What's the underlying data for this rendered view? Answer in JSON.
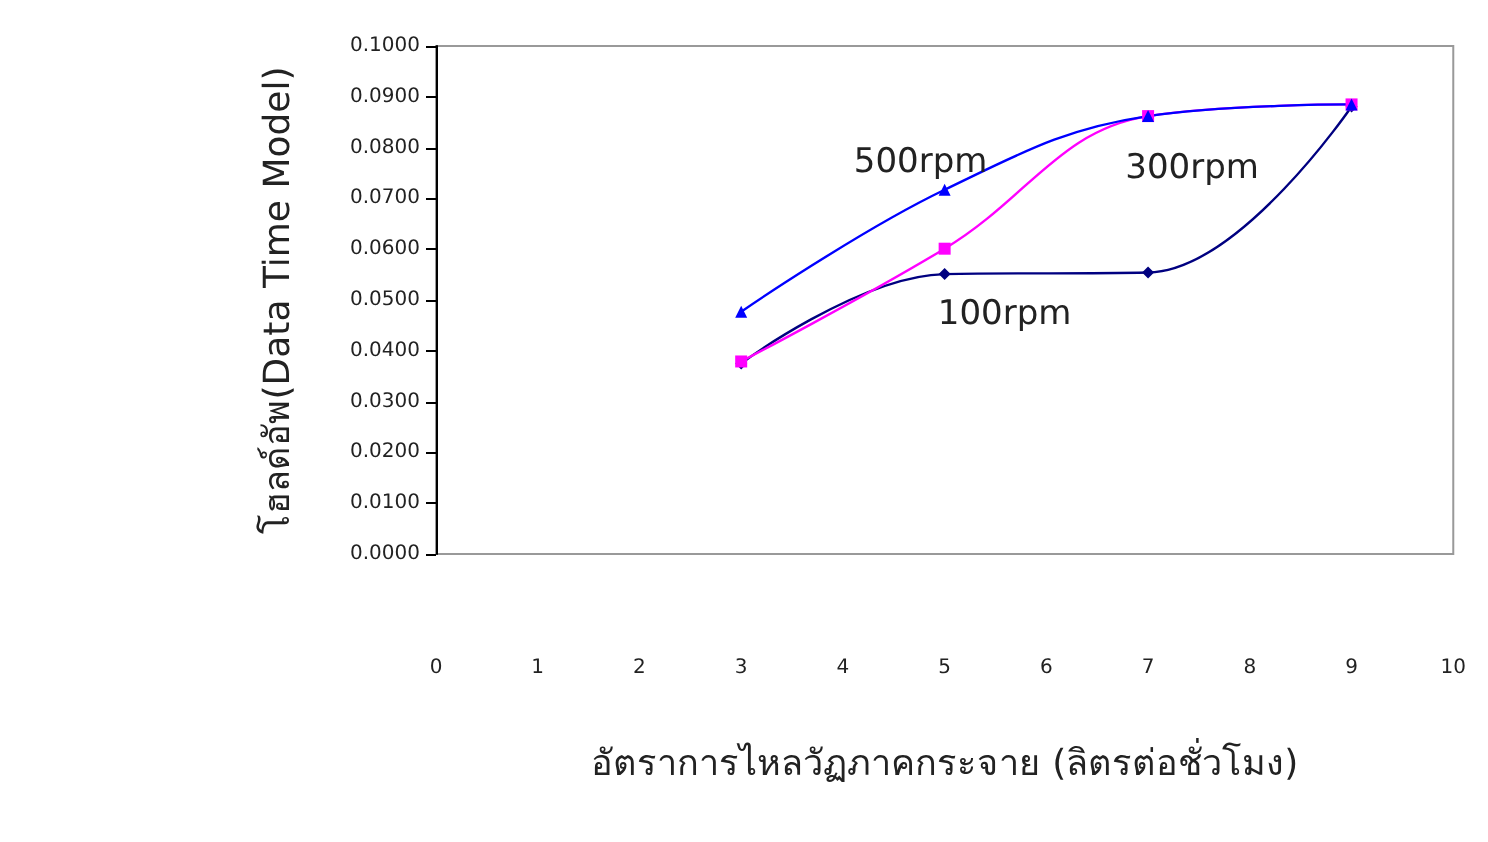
{
  "chart_data": {
    "type": "line",
    "xlabel": "อัตราการไหลวัฏภาคกระจาย (ลิตรต่อชั่วโมง)",
    "ylabel": "โฮลด์อัพ(Data Time Model)",
    "x": [
      3,
      5,
      7,
      9
    ],
    "series": [
      {
        "name": "100rpm",
        "color": "#000080",
        "marker": "diamond",
        "values": [
          0.0375,
          0.0551,
          0.0554,
          0.0881
        ]
      },
      {
        "name": "300rpm",
        "color": "#ff00ff",
        "marker": "square",
        "values": [
          0.0379,
          0.0601,
          0.0862,
          0.0885
        ]
      },
      {
        "name": "500rpm",
        "color": "#0000ff",
        "marker": "triangle",
        "values": [
          0.0477,
          0.0717,
          0.0862,
          0.0885
        ]
      }
    ],
    "xlim": [
      0,
      10
    ],
    "xticks": [
      0,
      1,
      2,
      3,
      4,
      5,
      6,
      7,
      8,
      9,
      10
    ],
    "ylim": [
      0,
      0.1
    ],
    "yticks": [
      {
        "value": 0,
        "label": "0.0000"
      },
      {
        "value": 0.01,
        "label": "0.0100"
      },
      {
        "value": 0.02,
        "label": "0.0200"
      },
      {
        "value": 0.03,
        "label": "0.0300"
      },
      {
        "value": 0.04,
        "label": "0.0400"
      },
      {
        "value": 0.05,
        "label": "0.0500"
      },
      {
        "value": 0.06,
        "label": "0.0600"
      },
      {
        "value": 0.07,
        "label": "0.0700"
      },
      {
        "value": 0.08,
        "label": "0.0800"
      },
      {
        "value": 0.09,
        "label": "0.0900"
      },
      {
        "value": 0.1,
        "label": "0.1000"
      }
    ],
    "grid": false,
    "legend": false,
    "line_style": "solid"
  }
}
